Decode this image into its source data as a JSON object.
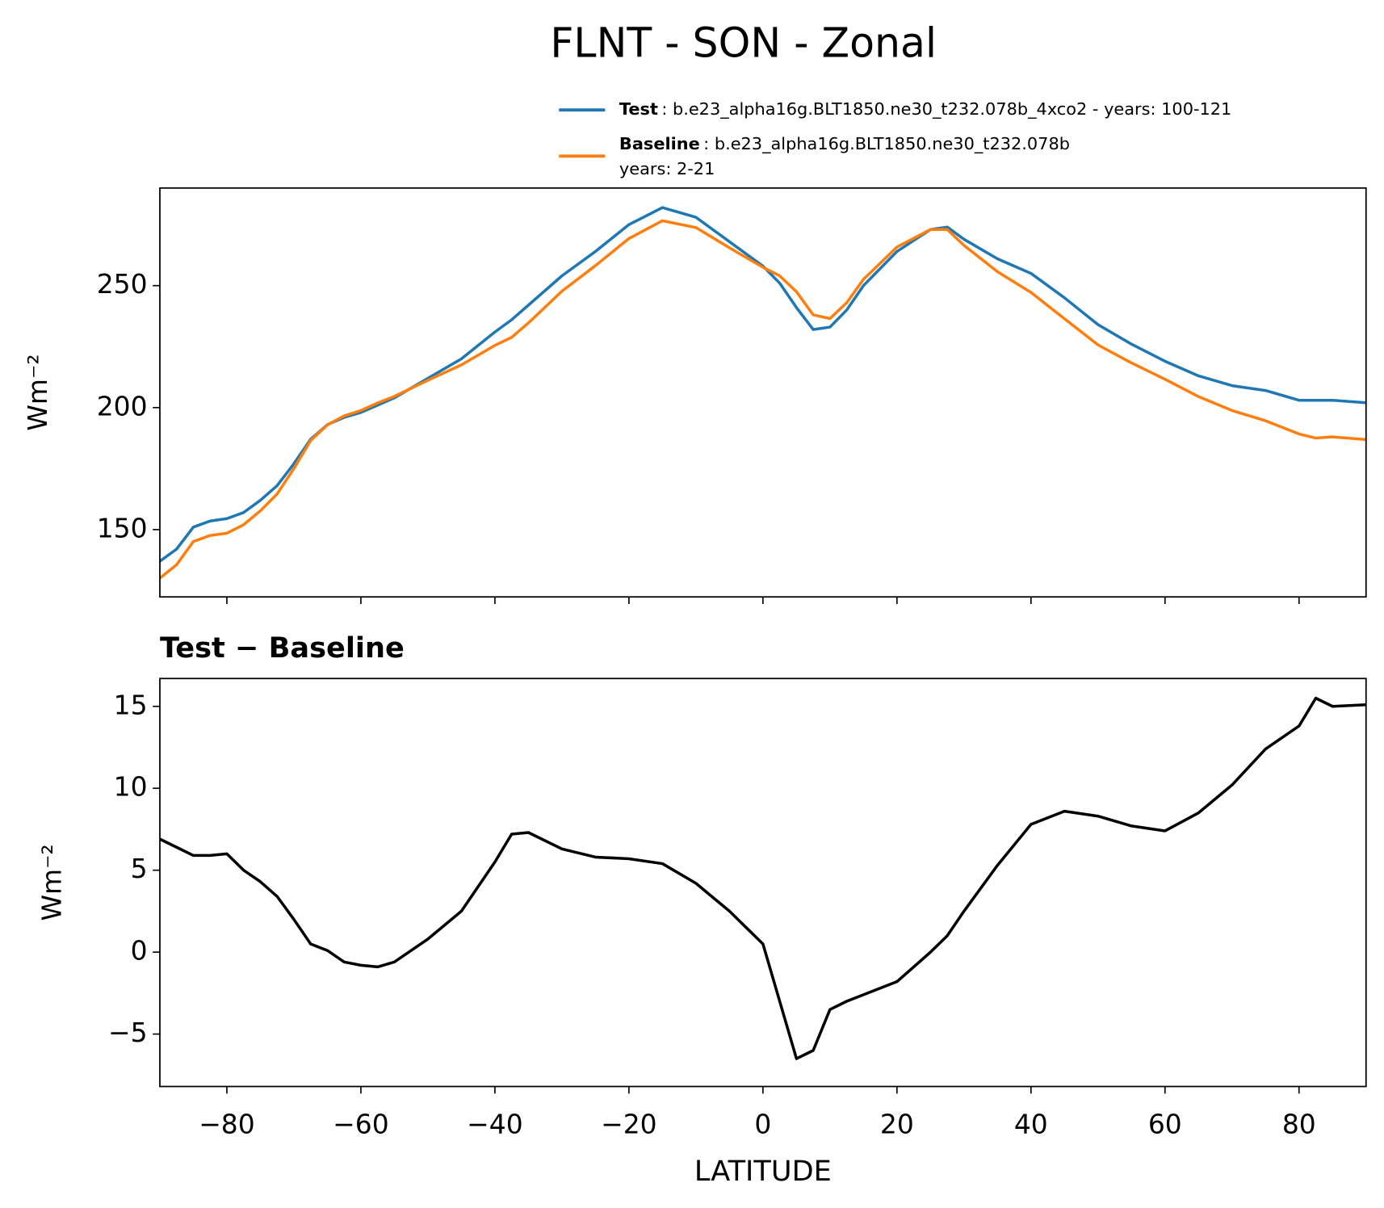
{
  "chart_data": [
    {
      "type": "line",
      "title": "FLNT - SON - Zonal",
      "ylabel": "Wm⁻²",
      "x": [
        -90,
        -87.5,
        -85,
        -82.5,
        -80,
        -77.5,
        -75,
        -72.5,
        -70,
        -67.5,
        -65,
        -62.5,
        -60,
        -57.5,
        -55,
        -50,
        -45,
        -40,
        -37.5,
        -35,
        -30,
        -25,
        -20,
        -15,
        -10,
        -5,
        -2.5,
        0,
        2.5,
        5,
        7.5,
        10,
        12.5,
        15,
        20,
        25,
        27.5,
        30,
        35,
        40,
        45,
        50,
        55,
        60,
        65,
        70,
        75,
        80,
        82.5,
        85,
        90
      ],
      "series": [
        {
          "name": "Test",
          "label_lines": [
            ": b.e23_alpha16g.BLT1850.ne30_t232.078b_4xco2 - years: 100-121"
          ],
          "color": "#1f77b4",
          "values": [
            137,
            142,
            151,
            153.5,
            154.5,
            157,
            162,
            168,
            177,
            187,
            193,
            196,
            198,
            201,
            204,
            212,
            220,
            231,
            236,
            242,
            254,
            264,
            275,
            282,
            278,
            268,
            263,
            258,
            251,
            241,
            232,
            233,
            240,
            250,
            264,
            273,
            274,
            269,
            261,
            255,
            245,
            234,
            226,
            219,
            213,
            209,
            207,
            203,
            203,
            203,
            202
          ]
        },
        {
          "name": "Baseline",
          "label_lines": [
            ": b.e23_alpha16g.BLT1850.ne30_t232.078b",
            "years: 2-21"
          ],
          "color": "#ff7f0e",
          "values": [
            130.1,
            135.6,
            145.1,
            147.6,
            148.5,
            152,
            157.7,
            164.6,
            175,
            186.5,
            192.9,
            196.6,
            198.8,
            201.9,
            204.6,
            211.2,
            217.5,
            225.5,
            228.8,
            234.7,
            247.7,
            258.2,
            269.3,
            276.6,
            273.8,
            265.5,
            261.5,
            257.5,
            254,
            247.5,
            238,
            236.5,
            243,
            252.6,
            265.8,
            273,
            273,
            266.5,
            255.7,
            247.2,
            236.4,
            225.7,
            218.3,
            211.6,
            204.5,
            198.8,
            194.6,
            189.2,
            187.5,
            188,
            186.9
          ]
        }
      ],
      "xlim": [
        -90,
        90
      ],
      "xticks": [
        -80,
        -60,
        -40,
        -20,
        0,
        20,
        40,
        60,
        80
      ],
      "ylim": [
        122.4,
        290
      ],
      "yticks": [
        150,
        200,
        250
      ]
    },
    {
      "type": "line",
      "title": "Test − Baseline",
      "ylabel": "Wm⁻²",
      "xlabel": "LATITUDE",
      "x": [
        -90,
        -87.5,
        -85,
        -82.5,
        -80,
        -77.5,
        -75,
        -72.5,
        -70,
        -67.5,
        -65,
        -62.5,
        -60,
        -57.5,
        -55,
        -50,
        -45,
        -40,
        -37.5,
        -35,
        -30,
        -25,
        -20,
        -15,
        -10,
        -5,
        -2.5,
        0,
        2.5,
        5,
        7.5,
        10,
        12.5,
        15,
        20,
        25,
        27.5,
        30,
        35,
        40,
        45,
        50,
        55,
        60,
        65,
        70,
        75,
        80,
        82.5,
        85,
        90
      ],
      "series": [
        {
          "color": "#000000",
          "values": [
            6.9,
            6.4,
            5.9,
            5.9,
            6.0,
            5.0,
            4.3,
            3.4,
            2.0,
            0.5,
            0.1,
            -0.6,
            -0.8,
            -0.9,
            -0.6,
            0.8,
            2.5,
            5.5,
            7.2,
            7.3,
            6.3,
            5.8,
            5.7,
            5.4,
            4.2,
            2.5,
            1.5,
            0.5,
            -3.0,
            -6.5,
            -6.0,
            -3.5,
            -3.0,
            -2.6,
            -1.8,
            0.0,
            1.0,
            2.5,
            5.3,
            7.8,
            8.6,
            8.3,
            7.7,
            7.4,
            8.5,
            10.2,
            12.4,
            13.8,
            15.5,
            15.0,
            15.1
          ]
        }
      ],
      "xlim": [
        -90,
        90
      ],
      "xticks": [
        {
          "value": -80,
          "label": "−80"
        },
        {
          "value": -60,
          "label": "−60"
        },
        {
          "value": -40,
          "label": "−40"
        },
        {
          "value": -20,
          "label": "−20"
        },
        0,
        20,
        40,
        60,
        80
      ],
      "ylim": [
        -8.2,
        16.7
      ],
      "yticks": [
        {
          "value": -5,
          "label": "−5"
        },
        0,
        5,
        10,
        15
      ]
    }
  ]
}
